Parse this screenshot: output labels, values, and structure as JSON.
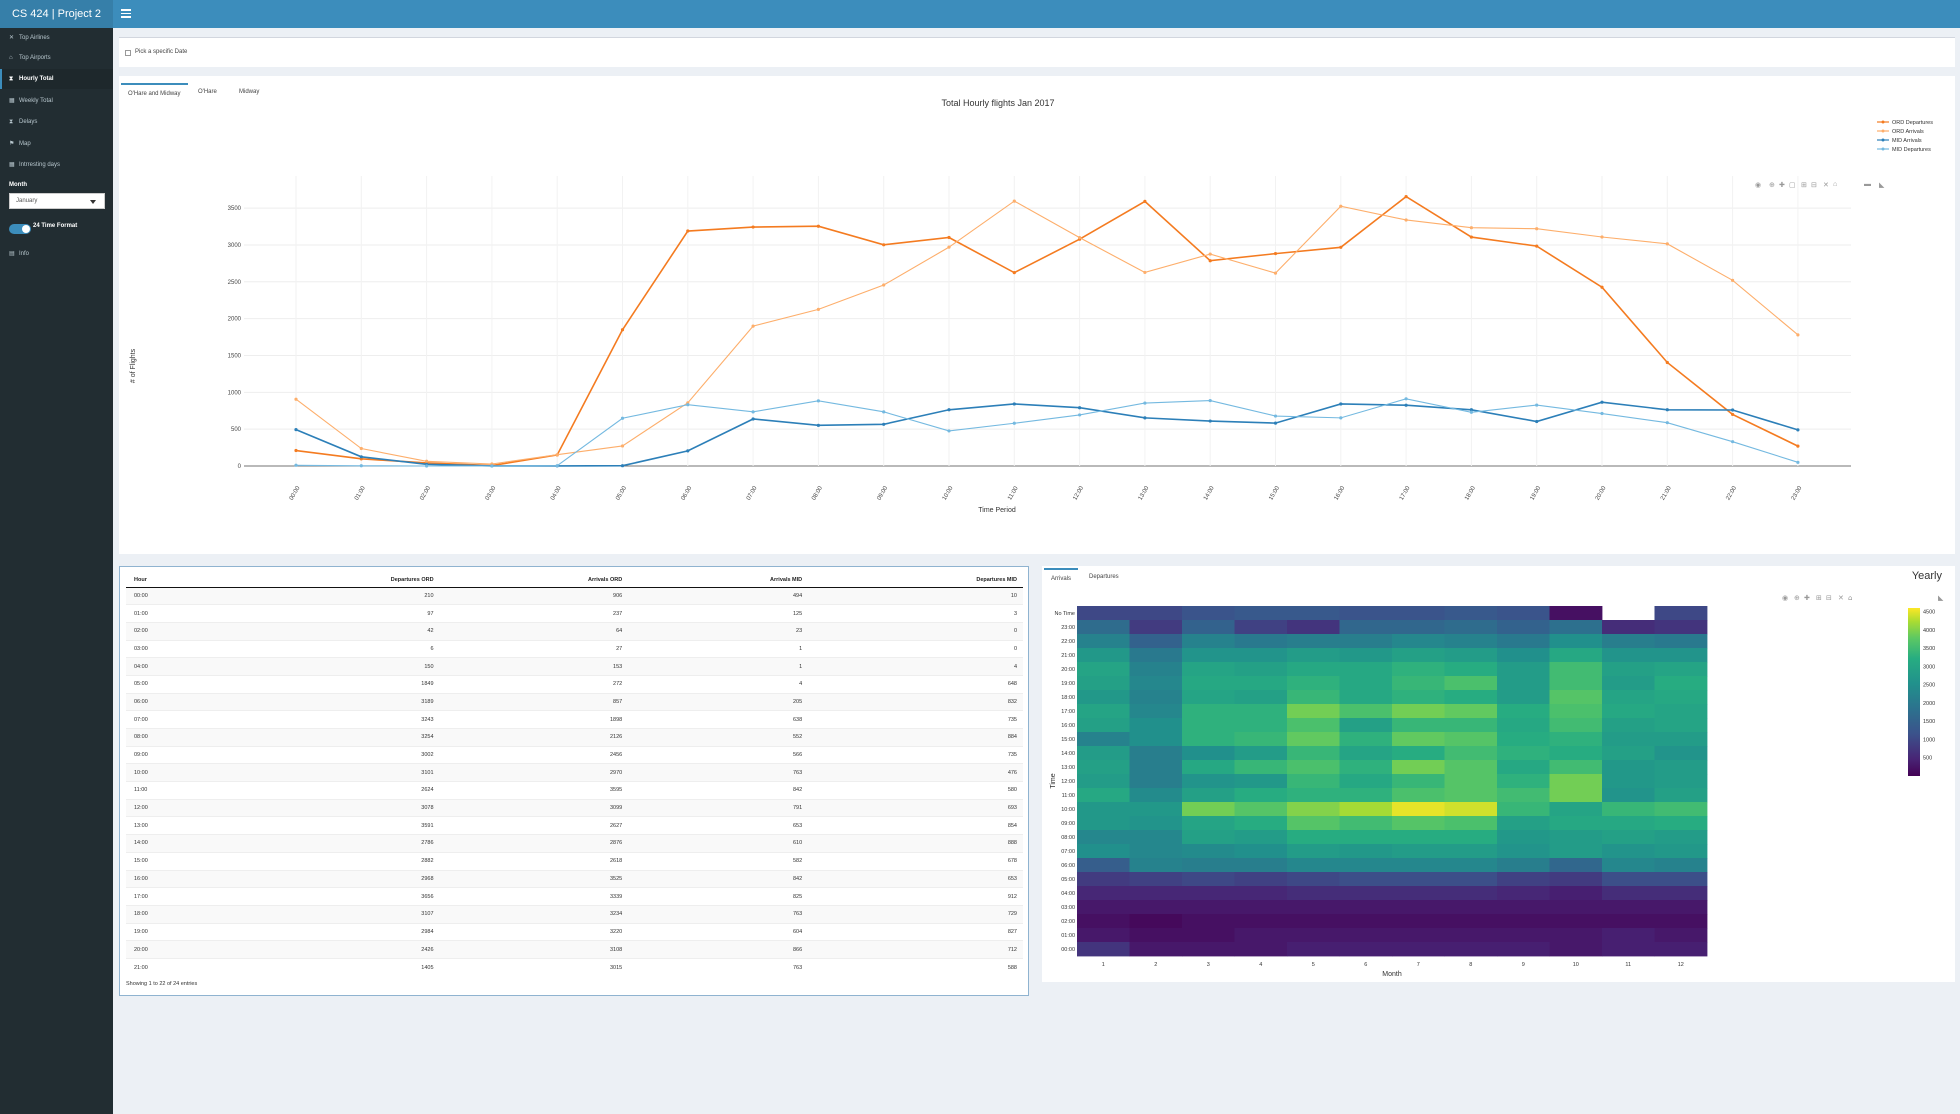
{
  "header": {
    "title": "CS 424 | Project 2"
  },
  "sidebar": {
    "items": [
      {
        "label": "Top Airlines",
        "icon": "plane-icon"
      },
      {
        "label": "Top Airports",
        "icon": "bank-icon"
      },
      {
        "label": "Hourly Total",
        "icon": "hourglass-icon"
      },
      {
        "label": "Weekly Total",
        "icon": "calendar-icon"
      },
      {
        "label": "Delays",
        "icon": "hourglass-icon"
      },
      {
        "label": "Map",
        "icon": "flag-icon"
      },
      {
        "label": "Intrresting days",
        "icon": "calendar-icon"
      }
    ],
    "month_label": "Month",
    "month_value": "January",
    "time_format_label": "24 Time Format",
    "info_label": "Info"
  },
  "datebox": {
    "label": "Pick a specific Date"
  },
  "chart_tabs": [
    "O'Hare and Midway",
    "O'Hare",
    "Midway"
  ],
  "table": {
    "columns": [
      "Hour",
      "Departures ORD",
      "Arrivals ORD",
      "Arrivals MID",
      "Departures MID"
    ],
    "rows": [
      [
        "00:00",
        "210",
        "906",
        "494",
        "10"
      ],
      [
        "01:00",
        "97",
        "237",
        "125",
        "3"
      ],
      [
        "02:00",
        "42",
        "64",
        "23",
        "0"
      ],
      [
        "03:00",
        "6",
        "27",
        "1",
        "0"
      ],
      [
        "04:00",
        "150",
        "153",
        "1",
        "4"
      ],
      [
        "05:00",
        "1849",
        "272",
        "4",
        "648"
      ],
      [
        "06:00",
        "3189",
        "857",
        "205",
        "832"
      ],
      [
        "07:00",
        "3243",
        "1898",
        "638",
        "735"
      ],
      [
        "08:00",
        "3254",
        "2126",
        "552",
        "884"
      ],
      [
        "09:00",
        "3002",
        "2456",
        "566",
        "735"
      ],
      [
        "10:00",
        "3101",
        "2970",
        "763",
        "476"
      ],
      [
        "11:00",
        "2624",
        "3595",
        "842",
        "580"
      ],
      [
        "12:00",
        "3078",
        "3099",
        "791",
        "693"
      ],
      [
        "13:00",
        "3591",
        "2627",
        "653",
        "854"
      ],
      [
        "14:00",
        "2786",
        "2876",
        "610",
        "888"
      ],
      [
        "15:00",
        "2882",
        "2618",
        "582",
        "678"
      ],
      [
        "16:00",
        "2968",
        "3525",
        "842",
        "653"
      ],
      [
        "17:00",
        "3656",
        "3339",
        "825",
        "912"
      ],
      [
        "18:00",
        "3107",
        "3234",
        "763",
        "729"
      ],
      [
        "19:00",
        "2984",
        "3220",
        "604",
        "827"
      ],
      [
        "20:00",
        "2426",
        "3108",
        "866",
        "712"
      ],
      [
        "21:00",
        "1405",
        "3015",
        "763",
        "588"
      ]
    ],
    "footer": "Showing 1 to 22 of 24 entries"
  },
  "heat_tabs": [
    "Arrivals",
    "Departures"
  ],
  "colors": {
    "ord_dep": "#f47b20",
    "ord_arr": "#fdae6b",
    "mid_arr": "#2c7fb8",
    "mid_dep": "#74b9e0"
  },
  "chart_data": [
    {
      "type": "line",
      "title": "Total Hourly flights Jan 2017",
      "xlabel": "Time Period",
      "ylabel": "# of Flights",
      "x": [
        "00:00",
        "01:00",
        "02:00",
        "03:00",
        "04:00",
        "05:00",
        "06:00",
        "07:00",
        "08:00",
        "09:00",
        "10:00",
        "11:00",
        "12:00",
        "13:00",
        "14:00",
        "15:00",
        "16:00",
        "17:00",
        "18:00",
        "19:00",
        "20:00",
        "21:00",
        "22:00",
        "23:00"
      ],
      "yticks": [
        0,
        500,
        1000,
        1500,
        2000,
        2500,
        3000,
        3500
      ],
      "ylim": [
        0,
        3800
      ],
      "legend": "top-right",
      "grid": true,
      "series": [
        {
          "name": "ORD Departures",
          "values": [
            210,
            97,
            42,
            6,
            150,
            1849,
            3189,
            3243,
            3254,
            3002,
            3101,
            2624,
            3078,
            3591,
            2786,
            2882,
            2968,
            3656,
            3107,
            2984,
            2426,
            1405,
            700,
            270
          ]
        },
        {
          "name": "ORD Arrivals",
          "values": [
            906,
            237,
            64,
            27,
            153,
            272,
            857,
            1898,
            2126,
            2456,
            2970,
            3595,
            3099,
            2627,
            2876,
            2618,
            3525,
            3339,
            3234,
            3220,
            3108,
            3015,
            2520,
            1780
          ]
        },
        {
          "name": "MID Arrivals",
          "values": [
            494,
            125,
            23,
            1,
            1,
            4,
            205,
            638,
            552,
            566,
            763,
            842,
            791,
            653,
            610,
            582,
            842,
            825,
            763,
            604,
            866,
            763,
            760,
            490
          ]
        },
        {
          "name": "MID Departures",
          "values": [
            10,
            3,
            0,
            0,
            4,
            648,
            832,
            735,
            884,
            735,
            476,
            580,
            693,
            854,
            888,
            678,
            653,
            912,
            729,
            827,
            712,
            588,
            330,
            50
          ]
        }
      ]
    },
    {
      "type": "heatmap",
      "title": "Yearly",
      "xlabel": "Month",
      "ylabel": "Time",
      "x": [
        "1",
        "2",
        "3",
        "4",
        "5",
        "6",
        "7",
        "8",
        "9",
        "10",
        "11",
        "12"
      ],
      "y": [
        "No Time",
        "23:00",
        "22:00",
        "21:00",
        "20:00",
        "19:00",
        "18:00",
        "17:00",
        "16:00",
        "15:00",
        "14:00",
        "13:00",
        "12:00",
        "11:00",
        "10:00",
        "09:00",
        "08:00",
        "07:00",
        "06:00",
        "05:00",
        "04:00",
        "03:00",
        "02:00",
        "01:00",
        "00:00"
      ],
      "colorbar_ticks": [
        500,
        1000,
        1500,
        2000,
        2500,
        3000,
        3500,
        4000,
        4500
      ],
      "zlim": [
        0,
        4600
      ],
      "z": [
        [
          1000,
          1000,
          1200,
          1300,
          1300,
          1200,
          1200,
          1300,
          1200,
          200,
          null,
          1000
        ],
        [
          1700,
          800,
          1500,
          900,
          700,
          1600,
          1600,
          1700,
          1500,
          1800,
          600,
          700
        ],
        [
          2200,
          1500,
          2200,
          2000,
          2100,
          2100,
          2300,
          2200,
          2000,
          2500,
          2100,
          2000
        ],
        [
          2700,
          2000,
          2600,
          2600,
          2800,
          2700,
          2900,
          2800,
          2500,
          3100,
          2600,
          2600
        ],
        [
          3000,
          2200,
          3000,
          2900,
          3100,
          3100,
          3300,
          3200,
          2800,
          3500,
          2900,
          3000
        ],
        [
          2900,
          2300,
          3100,
          3100,
          3300,
          3100,
          3400,
          3600,
          2800,
          3500,
          2800,
          3200
        ],
        [
          2700,
          2200,
          3000,
          2900,
          3400,
          3100,
          3300,
          3200,
          2800,
          3700,
          3000,
          3100
        ],
        [
          3000,
          2300,
          3300,
          3300,
          3900,
          3600,
          3900,
          3800,
          3200,
          3600,
          3100,
          3000
        ],
        [
          2900,
          2500,
          3300,
          3300,
          3600,
          2900,
          3400,
          3400,
          3100,
          3500,
          2900,
          3000
        ],
        [
          2200,
          2500,
          3300,
          3400,
          3800,
          3300,
          3800,
          3700,
          3200,
          3300,
          2800,
          2800
        ],
        [
          2800,
          2100,
          2500,
          2800,
          3400,
          3000,
          3200,
          3500,
          3300,
          3200,
          2900,
          2600
        ],
        [
          2900,
          2100,
          3100,
          3400,
          3600,
          3300,
          3900,
          3700,
          3100,
          3500,
          2700,
          2800
        ],
        [
          2800,
          2100,
          2600,
          2700,
          3400,
          3100,
          3400,
          3700,
          3300,
          3900,
          2700,
          2800
        ],
        [
          3100,
          2400,
          2900,
          3200,
          3300,
          3300,
          3600,
          3700,
          3500,
          3900,
          2600,
          2900
        ],
        [
          2700,
          2700,
          3900,
          3700,
          4000,
          4200,
          4500,
          4400,
          3400,
          3000,
          3400,
          3500
        ],
        [
          2700,
          2600,
          3000,
          3200,
          3700,
          3500,
          3700,
          3600,
          2900,
          3100,
          3100,
          3200
        ],
        [
          2300,
          2300,
          2900,
          2800,
          3200,
          3200,
          3200,
          3200,
          2700,
          2800,
          2900,
          2800
        ],
        [
          2500,
          2300,
          2400,
          2500,
          2800,
          2700,
          2800,
          2800,
          2600,
          2800,
          2600,
          2700
        ],
        [
          1400,
          2200,
          2100,
          2100,
          2300,
          2300,
          2300,
          2300,
          2100,
          1600,
          2300,
          2200
        ],
        [
          800,
          900,
          1000,
          900,
          1000,
          1100,
          1100,
          1100,
          900,
          800,
          1100,
          1100
        ],
        [
          500,
          500,
          500,
          500,
          600,
          600,
          600,
          600,
          500,
          400,
          600,
          600
        ],
        [
          300,
          300,
          300,
          300,
          300,
          300,
          300,
          300,
          300,
          300,
          300,
          300
        ],
        [
          200,
          100,
          200,
          200,
          200,
          200,
          200,
          200,
          200,
          200,
          200,
          200
        ],
        [
          300,
          200,
          200,
          300,
          300,
          300,
          300,
          300,
          300,
          300,
          400,
          300
        ],
        [
          700,
          300,
          300,
          300,
          400,
          400,
          400,
          400,
          400,
          300,
          400,
          400
        ]
      ]
    }
  ]
}
